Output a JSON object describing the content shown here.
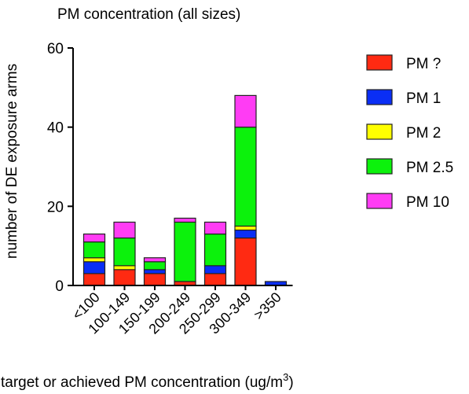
{
  "chart_data": {
    "type": "bar",
    "stacked": true,
    "title": "PM concentration (all sizes)",
    "xlabel": "target or achieved PM concentration (ug/m",
    "xlabel_sup": "3",
    "xlabel_close": ")",
    "ylabel": "number of  DE exposure arms",
    "ylim": [
      0,
      60
    ],
    "yticks": [
      "0",
      "20",
      "40",
      "60"
    ],
    "categories": [
      "<100",
      "100-149",
      "150-199",
      "200-249",
      "250-299",
      "300-349",
      ">350"
    ],
    "series": [
      {
        "name": "PM ?",
        "color": "#ff2a12",
        "values": [
          3,
          4,
          3,
          1,
          3,
          12,
          0
        ]
      },
      {
        "name": "PM 1",
        "color": "#0a2ef5",
        "values": [
          3,
          0,
          1,
          0,
          2,
          2,
          1
        ]
      },
      {
        "name": "PM 2",
        "color": "#ffff00",
        "values": [
          1,
          1,
          0,
          0,
          0,
          1,
          0
        ]
      },
      {
        "name": "PM 2.5",
        "color": "#0cf20c",
        "values": [
          4,
          7,
          2,
          15,
          8,
          25,
          0
        ]
      },
      {
        "name": "PM 10",
        "color": "#ff3cf4",
        "values": [
          2,
          4,
          1,
          1,
          3,
          8,
          0
        ]
      }
    ],
    "legend_position": "right",
    "grid": false
  }
}
